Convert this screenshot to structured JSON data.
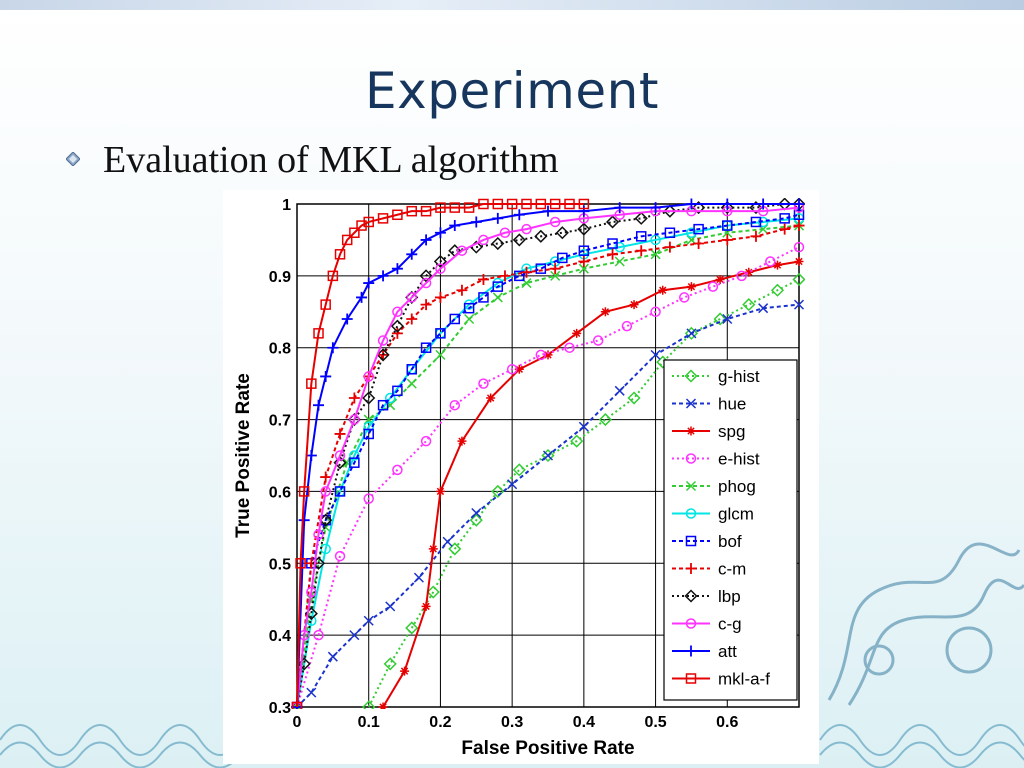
{
  "slide": {
    "title": "Experiment",
    "bullet_text": "Evaluation of MKL algorithm"
  },
  "colors": {
    "title": "#17365d",
    "green": "#33cc33",
    "blue": "#0000ff",
    "dark_blue": "#1a33cc",
    "red": "#e60000",
    "magenta": "#ff33ff",
    "cyan": "#00e5e5",
    "black": "#111111"
  },
  "chart_data": {
    "type": "line",
    "title": "",
    "xlabel": "False Positive Rate",
    "ylabel": "True Positive Rate",
    "xlim": [
      0,
      0.7
    ],
    "ylim": [
      0.3,
      1.0
    ],
    "xticks": [
      "0",
      "0.1",
      "0.2",
      "0.3",
      "0.4",
      "0.5",
      "0.6"
    ],
    "yticks": [
      "0.3",
      "0.4",
      "0.5",
      "0.6",
      "0.7",
      "0.8",
      "0.9",
      "1"
    ],
    "grid": true,
    "legend_position": "bottom-right",
    "series": [
      {
        "name": "g-hist",
        "color": "#33cc33",
        "dash": "2,3",
        "marker": "diamond",
        "x": [
          0.1,
          0.13,
          0.16,
          0.19,
          0.22,
          0.25,
          0.28,
          0.31,
          0.35,
          0.39,
          0.43,
          0.47,
          0.51,
          0.55,
          0.59,
          0.63,
          0.67,
          0.7
        ],
        "y": [
          0.3,
          0.36,
          0.41,
          0.46,
          0.52,
          0.56,
          0.6,
          0.63,
          0.65,
          0.67,
          0.7,
          0.73,
          0.78,
          0.82,
          0.84,
          0.86,
          0.88,
          0.895
        ]
      },
      {
        "name": "hue",
        "color": "#1a33cc",
        "dash": "4,3",
        "marker": "x",
        "x": [
          0.0,
          0.02,
          0.05,
          0.08,
          0.1,
          0.13,
          0.17,
          0.21,
          0.25,
          0.3,
          0.35,
          0.4,
          0.45,
          0.5,
          0.55,
          0.6,
          0.65,
          0.7
        ],
        "y": [
          0.3,
          0.32,
          0.37,
          0.4,
          0.42,
          0.44,
          0.48,
          0.53,
          0.57,
          0.61,
          0.65,
          0.69,
          0.74,
          0.79,
          0.82,
          0.84,
          0.855,
          0.86
        ]
      },
      {
        "name": "spg",
        "color": "#e60000",
        "dash": "",
        "marker": "asterisk",
        "x": [
          0.12,
          0.15,
          0.18,
          0.19,
          0.2,
          0.23,
          0.27,
          0.31,
          0.35,
          0.39,
          0.43,
          0.47,
          0.51,
          0.55,
          0.59,
          0.63,
          0.67,
          0.7
        ],
        "y": [
          0.3,
          0.35,
          0.44,
          0.52,
          0.6,
          0.67,
          0.73,
          0.77,
          0.79,
          0.82,
          0.85,
          0.86,
          0.88,
          0.885,
          0.895,
          0.905,
          0.915,
          0.92
        ]
      },
      {
        "name": "e-hist",
        "color": "#ff33ff",
        "dash": "2,3",
        "marker": "circle",
        "x": [
          0.0,
          0.03,
          0.06,
          0.1,
          0.14,
          0.18,
          0.22,
          0.26,
          0.3,
          0.34,
          0.38,
          0.42,
          0.46,
          0.5,
          0.54,
          0.58,
          0.62,
          0.66,
          0.7
        ],
        "y": [
          0.3,
          0.4,
          0.51,
          0.59,
          0.63,
          0.67,
          0.72,
          0.75,
          0.77,
          0.79,
          0.8,
          0.81,
          0.83,
          0.85,
          0.87,
          0.885,
          0.9,
          0.92,
          0.94
        ]
      },
      {
        "name": "phog",
        "color": "#33cc33",
        "dash": "4,3",
        "marker": "x",
        "x": [
          0.0,
          0.02,
          0.04,
          0.07,
          0.1,
          0.13,
          0.16,
          0.2,
          0.24,
          0.28,
          0.32,
          0.36,
          0.4,
          0.45,
          0.5,
          0.55,
          0.6,
          0.65,
          0.7
        ],
        "y": [
          0.3,
          0.45,
          0.55,
          0.64,
          0.7,
          0.72,
          0.75,
          0.79,
          0.84,
          0.87,
          0.89,
          0.9,
          0.91,
          0.92,
          0.93,
          0.95,
          0.96,
          0.965,
          0.97
        ]
      },
      {
        "name": "glcm",
        "color": "#00e5e5",
        "dash": "",
        "marker": "circle",
        "x": [
          0.0,
          0.02,
          0.04,
          0.06,
          0.08,
          0.1,
          0.13,
          0.16,
          0.2,
          0.24,
          0.28,
          0.32,
          0.36,
          0.4,
          0.45,
          0.5,
          0.55,
          0.6,
          0.65,
          0.7
        ],
        "y": [
          0.3,
          0.42,
          0.52,
          0.6,
          0.65,
          0.69,
          0.73,
          0.77,
          0.82,
          0.86,
          0.89,
          0.91,
          0.92,
          0.93,
          0.94,
          0.95,
          0.96,
          0.97,
          0.975,
          0.98
        ]
      },
      {
        "name": "bof",
        "color": "#0000ff",
        "dash": "4,3",
        "marker": "square",
        "x": [
          0.0,
          0.02,
          0.04,
          0.06,
          0.08,
          0.1,
          0.12,
          0.14,
          0.16,
          0.18,
          0.2,
          0.22,
          0.24,
          0.26,
          0.28,
          0.31,
          0.34,
          0.37,
          0.4,
          0.44,
          0.48,
          0.52,
          0.56,
          0.6,
          0.64,
          0.68,
          0.7
        ],
        "y": [
          0.3,
          0.5,
          0.56,
          0.6,
          0.64,
          0.68,
          0.72,
          0.74,
          0.77,
          0.8,
          0.82,
          0.84,
          0.855,
          0.87,
          0.885,
          0.9,
          0.91,
          0.925,
          0.935,
          0.945,
          0.955,
          0.96,
          0.965,
          0.97,
          0.975,
          0.98,
          0.985
        ]
      },
      {
        "name": "c-m",
        "color": "#e60000",
        "dash": "4,3",
        "marker": "plus",
        "x": [
          0.0,
          0.02,
          0.04,
          0.06,
          0.08,
          0.1,
          0.12,
          0.14,
          0.16,
          0.18,
          0.2,
          0.23,
          0.26,
          0.29,
          0.32,
          0.36,
          0.4,
          0.44,
          0.48,
          0.52,
          0.56,
          0.6,
          0.64,
          0.68,
          0.7
        ],
        "y": [
          0.3,
          0.5,
          0.62,
          0.68,
          0.73,
          0.76,
          0.79,
          0.82,
          0.84,
          0.86,
          0.87,
          0.88,
          0.895,
          0.9,
          0.905,
          0.91,
          0.92,
          0.93,
          0.935,
          0.94,
          0.945,
          0.95,
          0.955,
          0.965,
          0.97
        ]
      },
      {
        "name": "lbp",
        "color": "#111111",
        "dash": "2,3",
        "marker": "diamond",
        "x": [
          0.0,
          0.01,
          0.02,
          0.03,
          0.04,
          0.06,
          0.08,
          0.1,
          0.12,
          0.14,
          0.16,
          0.18,
          0.2,
          0.22,
          0.25,
          0.28,
          0.31,
          0.34,
          0.37,
          0.4,
          0.44,
          0.48,
          0.52,
          0.56,
          0.6,
          0.64,
          0.68,
          0.7
        ],
        "y": [
          0.3,
          0.36,
          0.43,
          0.5,
          0.56,
          0.64,
          0.7,
          0.73,
          0.79,
          0.83,
          0.87,
          0.9,
          0.92,
          0.935,
          0.94,
          0.945,
          0.95,
          0.955,
          0.96,
          0.965,
          0.975,
          0.98,
          0.99,
          0.995,
          0.995,
          0.995,
          1.0,
          1.0
        ]
      },
      {
        "name": "c-g",
        "color": "#ff33ff",
        "dash": "",
        "marker": "circle",
        "x": [
          0.0,
          0.01,
          0.02,
          0.03,
          0.04,
          0.06,
          0.08,
          0.1,
          0.12,
          0.14,
          0.16,
          0.18,
          0.2,
          0.23,
          0.26,
          0.29,
          0.32,
          0.36,
          0.4,
          0.45,
          0.5,
          0.55,
          0.6,
          0.65,
          0.7
        ],
        "y": [
          0.3,
          0.4,
          0.46,
          0.54,
          0.6,
          0.65,
          0.7,
          0.76,
          0.81,
          0.85,
          0.87,
          0.89,
          0.91,
          0.935,
          0.95,
          0.96,
          0.965,
          0.975,
          0.98,
          0.985,
          0.99,
          0.99,
          0.99,
          0.99,
          0.995
        ]
      },
      {
        "name": "att",
        "color": "#0000ff",
        "dash": "",
        "marker": "plus",
        "x": [
          0.0,
          0.01,
          0.02,
          0.03,
          0.04,
          0.05,
          0.07,
          0.09,
          0.1,
          0.12,
          0.14,
          0.16,
          0.18,
          0.2,
          0.22,
          0.25,
          0.28,
          0.31,
          0.35,
          0.4,
          0.45,
          0.5,
          0.55,
          0.6,
          0.65,
          0.7
        ],
        "y": [
          0.3,
          0.56,
          0.65,
          0.72,
          0.76,
          0.8,
          0.84,
          0.87,
          0.89,
          0.9,
          0.91,
          0.93,
          0.95,
          0.96,
          0.97,
          0.975,
          0.98,
          0.985,
          0.99,
          0.99,
          0.995,
          0.995,
          1.0,
          1.0,
          1.0,
          1.0
        ]
      },
      {
        "name": "mkl-a-f",
        "color": "#e60000",
        "dash": "",
        "marker": "square",
        "x": [
          0.0,
          0.005,
          0.01,
          0.02,
          0.03,
          0.04,
          0.05,
          0.06,
          0.07,
          0.08,
          0.09,
          0.1,
          0.12,
          0.14,
          0.16,
          0.18,
          0.2,
          0.22,
          0.24,
          0.26,
          0.28,
          0.3,
          0.32,
          0.34,
          0.36,
          0.38,
          0.4
        ],
        "y": [
          0.3,
          0.5,
          0.6,
          0.75,
          0.82,
          0.86,
          0.9,
          0.93,
          0.95,
          0.96,
          0.97,
          0.975,
          0.98,
          0.985,
          0.99,
          0.99,
          0.995,
          0.995,
          0.995,
          1.0,
          1.0,
          1.0,
          1.0,
          1.0,
          1.0,
          1.0,
          1.0
        ]
      }
    ]
  }
}
